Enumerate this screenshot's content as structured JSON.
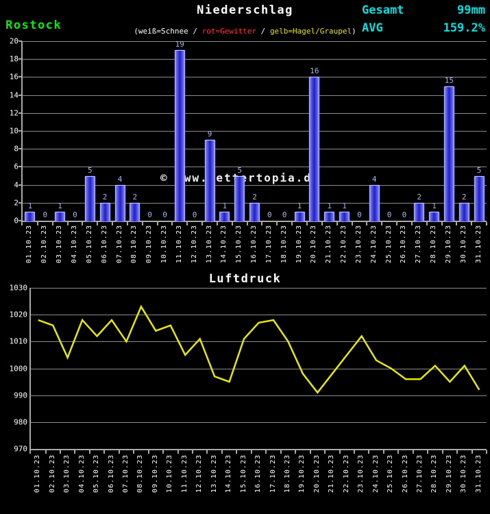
{
  "header": {
    "station": "Rostock",
    "gesamt_label": "Gesamt",
    "gesamt_value": "99mm",
    "avg_label": "AVG",
    "avg_value": "159.2%"
  },
  "watermark": "© www.wettertopia.de",
  "colors": {
    "background": "#000000",
    "station_green": "#00ee00",
    "stat_cyan": "#00e0e0",
    "bar_blue": "#3434dc",
    "bar_edge_light": "#b9c1f2",
    "value_label_blue": "#9fb8ee",
    "line_yellow": "#e8e800",
    "grid_gray": "#8c8c8c",
    "text_white": "#ffffff",
    "legend_red": "#ff3333",
    "legend_yellow": "#e6e600"
  },
  "chart_data": [
    {
      "type": "bar",
      "title": "Niederschlag",
      "subtitle_parts": [
        {
          "text": "(weiß=Schnee",
          "color": "#ffffff"
        },
        {
          "text": " / ",
          "color": "#ffffff"
        },
        {
          "text": "rot=Gewitter",
          "color": "#ff3333"
        },
        {
          "text": " / ",
          "color": "#ffffff"
        },
        {
          "text": "gelb=Hagel/Graupel",
          "color": "#e6e600"
        },
        {
          "text": ")",
          "color": "#ffffff"
        }
      ],
      "categories": [
        "01.10.23",
        "02.10.23",
        "03.10.23",
        "04.10.23",
        "05.10.23",
        "06.10.23",
        "07.10.23",
        "08.10.23",
        "09.10.23",
        "10.10.23",
        "11.10.23",
        "12.10.23",
        "13.10.23",
        "14.10.23",
        "15.10.23",
        "16.10.23",
        "17.10.23",
        "18.10.23",
        "19.10.23",
        "20.10.23",
        "21.10.23",
        "22.10.23",
        "23.10.23",
        "24.10.23",
        "25.10.23",
        "26.10.23",
        "27.10.23",
        "28.10.23",
        "29.10.23",
        "30.10.23",
        "31.10.23"
      ],
      "values": [
        1,
        0,
        1,
        0,
        5,
        2,
        4,
        2,
        0,
        0,
        19,
        0,
        9,
        1,
        5,
        2,
        0,
        0,
        1,
        16,
        1,
        1,
        0,
        4,
        0,
        0,
        2,
        1,
        15,
        2,
        5
      ],
      "unit": "mm",
      "total": 99,
      "xlabel": "",
      "ylabel": "",
      "ylim": [
        0,
        20
      ],
      "yticks": [
        0,
        2,
        4,
        6,
        8,
        10,
        12,
        14,
        16,
        18,
        20
      ],
      "grid": true,
      "legend_position": "none"
    },
    {
      "type": "line",
      "title": "Luftdruck",
      "categories": [
        "01.10.23",
        "02.10.23",
        "03.10.23",
        "04.10.23",
        "05.10.23",
        "06.10.23",
        "07.10.23",
        "08.10.23",
        "09.10.23",
        "10.10.23",
        "11.10.23",
        "12.10.23",
        "13.10.23",
        "14.10.23",
        "15.10.23",
        "16.10.23",
        "17.10.23",
        "18.10.23",
        "19.10.23",
        "20.10.23",
        "21.10.23",
        "22.10.23",
        "23.10.23",
        "24.10.23",
        "25.10.23",
        "26.10.23",
        "27.10.23",
        "28.10.23",
        "29.10.23",
        "30.10.23",
        "31.10.23"
      ],
      "values": [
        1018,
        1016,
        1004,
        1018,
        1012,
        1018,
        1010,
        1023,
        1014,
        1016,
        1005,
        1011,
        997,
        995,
        1011,
        1017,
        1018,
        1010,
        998,
        991,
        998,
        1005,
        1012,
        1003,
        1000,
        996,
        996,
        1001,
        995,
        1001,
        992
      ],
      "xlabel": "",
      "ylabel": "",
      "ylim": [
        970,
        1030
      ],
      "yticks": [
        970,
        980,
        990,
        1000,
        1010,
        1020,
        1030
      ],
      "grid": true,
      "legend_position": "none"
    }
  ]
}
